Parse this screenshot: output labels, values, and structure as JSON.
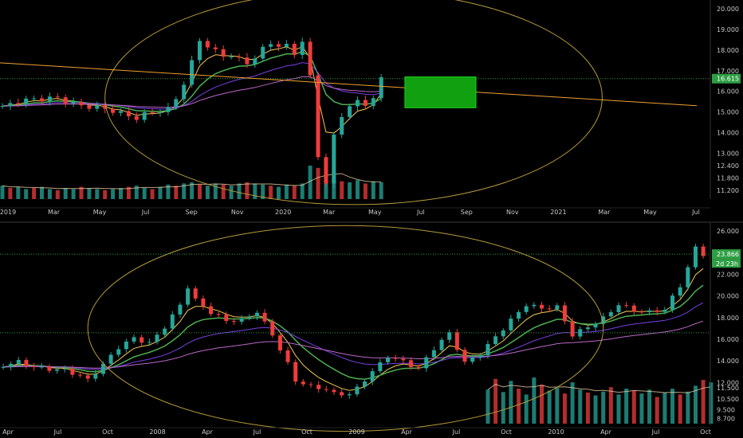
{
  "colors": {
    "background": "#000000",
    "up_candle": "#26a69a",
    "down_candle": "#ef3c3c",
    "ema_fast": "#f2c94c",
    "ema_mid": "#4caf50",
    "ma_slow": "#7b3fe4",
    "ma_200": "#ba68c8",
    "trendline": "#f0a030",
    "ellipse": "#b59a3a",
    "target_box": "#10a010",
    "price_tag": "#2e9e43"
  },
  "chart_data": [
    {
      "type": "candlestick",
      "panel": "top",
      "x_labels": [
        "2019",
        "Mar",
        "May",
        "Jul",
        "Sep",
        "Nov",
        "2020",
        "Mar",
        "May",
        "Jul",
        "Sep",
        "Nov",
        "2021",
        "Mar",
        "May",
        "Jul"
      ],
      "x_range": [
        "2019-01",
        "2021-08"
      ],
      "y_ticks": [
        "20.000",
        "19.000",
        "18.000",
        "17.000",
        "16.000",
        "15.000",
        "14.000",
        "13.000",
        "12.400",
        "11.800",
        "11.200"
      ],
      "ylim": [
        11.0,
        20.2
      ],
      "last_price_label": "16.615",
      "last_price": 16.615,
      "price_path": [
        [
          0,
          15.1
        ],
        [
          2,
          15.4
        ],
        [
          4,
          15.6
        ],
        [
          7,
          15.8
        ],
        [
          9,
          15.5
        ],
        [
          11,
          15.3
        ],
        [
          13,
          15.1
        ],
        [
          15,
          14.8
        ],
        [
          17,
          14.6
        ],
        [
          19,
          15.0
        ],
        [
          21,
          15.2
        ],
        [
          22,
          15.8
        ],
        [
          23,
          16.5
        ],
        [
          24,
          17.5
        ],
        [
          25,
          18.6
        ],
        [
          26,
          18.2
        ],
        [
          27,
          17.9
        ],
        [
          28,
          17.7
        ],
        [
          29,
          17.6
        ],
        [
          30,
          17.4
        ],
        [
          31,
          17.3
        ],
        [
          32,
          17.5
        ],
        [
          33,
          18.0
        ],
        [
          34,
          18.4
        ],
        [
          35,
          18.2
        ],
        [
          36,
          18.3
        ],
        [
          37,
          18.0
        ],
        [
          38,
          18.5
        ],
        [
          39,
          16.8
        ],
        [
          40,
          13.0
        ],
        [
          41,
          11.5
        ],
        [
          42,
          13.8
        ],
        [
          43,
          14.8
        ],
        [
          44,
          15.1
        ],
        [
          45,
          15.4
        ],
        [
          46,
          15.3
        ],
        [
          47,
          15.5
        ],
        [
          48,
          16.6
        ]
      ],
      "volume": [
        12,
        10,
        11,
        9,
        10,
        11,
        9,
        8,
        10,
        9,
        11,
        10,
        9,
        8,
        9,
        10,
        11,
        12,
        10,
        9,
        11,
        13,
        12,
        14,
        15,
        13,
        12,
        14,
        13,
        12,
        14,
        15,
        14,
        13,
        12,
        11,
        13,
        12,
        14,
        30,
        28,
        22,
        18,
        16,
        15,
        17,
        14,
        16,
        15
      ],
      "annotations": {
        "target_box": {
          "x_from": 51,
          "x_to": 60,
          "y_from": 15.2,
          "y_to": 16.7
        },
        "trendline": {
          "start": [
            -1,
            17.4
          ],
          "end": [
            88,
            15.3
          ]
        },
        "ellipse": {
          "x_from": 13,
          "x_to": 76,
          "y_from": 10.5,
          "y_to": 20.9
        }
      }
    },
    {
      "type": "candlestick",
      "panel": "bottom",
      "x_labels": [
        "Apr",
        "Jul",
        "Oct",
        "2008",
        "Apr",
        "Jul",
        "Oct",
        "2009",
        "Apr",
        "Jul",
        "Oct",
        "2010",
        "Apr",
        "Jul",
        "Oct"
      ],
      "x_range": [
        "2007-04",
        "2010-11"
      ],
      "y_ticks": [
        "26.000",
        "24.000",
        "22.000",
        "20.000",
        "18.000",
        "16.000",
        "14.000",
        "12.000",
        "11.500",
        "10.500",
        "9.500",
        "8.700"
      ],
      "ylim": [
        8.5,
        26.3
      ],
      "last_price_label": "23.866",
      "last_price": 23.866,
      "countdown_label": "2d 23h",
      "price_path": [
        [
          0,
          13.5
        ],
        [
          2,
          14.0
        ],
        [
          4,
          13.6
        ],
        [
          6,
          13.4
        ],
        [
          8,
          13.2
        ],
        [
          10,
          12.5
        ],
        [
          11,
          12.1
        ],
        [
          13,
          13.5
        ],
        [
          15,
          15.2
        ],
        [
          17,
          16.2
        ],
        [
          19,
          15.8
        ],
        [
          21,
          17.3
        ],
        [
          23,
          19.2
        ],
        [
          24,
          20.8
        ],
        [
          25,
          19.5
        ],
        [
          27,
          18.3
        ],
        [
          29,
          17.6
        ],
        [
          31,
          17.8
        ],
        [
          33,
          18.7
        ],
        [
          35,
          16.6
        ],
        [
          37,
          13.8
        ],
        [
          38,
          12.2
        ],
        [
          40,
          11.5
        ],
        [
          42,
          11.2
        ],
        [
          43,
          10.8
        ],
        [
          45,
          10.9
        ],
        [
          46,
          11.5
        ],
        [
          48,
          13.2
        ],
        [
          50,
          14.6
        ],
        [
          52,
          14.0
        ],
        [
          54,
          13.2
        ],
        [
          56,
          15.0
        ],
        [
          58,
          16.4
        ],
        [
          60,
          13.8
        ],
        [
          62,
          14.8
        ],
        [
          64,
          16.4
        ],
        [
          66,
          17.9
        ],
        [
          68,
          19.2
        ],
        [
          70,
          18.7
        ],
        [
          72,
          18.8
        ],
        [
          74,
          16.3
        ],
        [
          76,
          17.2
        ],
        [
          78,
          18.1
        ],
        [
          80,
          19.4
        ],
        [
          82,
          18.7
        ],
        [
          84,
          18.4
        ],
        [
          86,
          18.6
        ],
        [
          88,
          20.8
        ],
        [
          90,
          24.4
        ],
        [
          91,
          23.9
        ]
      ],
      "volume_start": 63,
      "volume": [
        70,
        92,
        65,
        88,
        72,
        60,
        95,
        80,
        68,
        74,
        62,
        85,
        70,
        64,
        58,
        66,
        75,
        60,
        72,
        68,
        62,
        70,
        55,
        64,
        72,
        60,
        66,
        78,
        90,
        85
      ],
      "annotations": {
        "reference_line_y": 16.6,
        "ellipse": {
          "x_from": 11,
          "x_to": 78,
          "y_from": 7.5,
          "y_to": 26.5
        }
      }
    }
  ]
}
